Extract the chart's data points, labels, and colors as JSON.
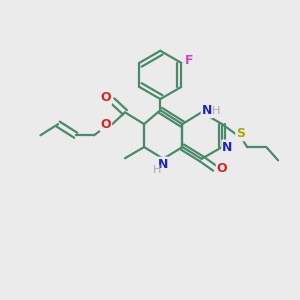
{
  "background_color": "#ebebeb",
  "bond_color": "#4a8a6a",
  "bond_width": 1.6,
  "fig_size": [
    3.0,
    3.0
  ],
  "dpi": 100,
  "atom_colors": {
    "F": "#cc44cc",
    "O": "#dd2222",
    "N": "#2222cc",
    "S": "#aaaa00",
    "H": "#aaaaaa"
  }
}
